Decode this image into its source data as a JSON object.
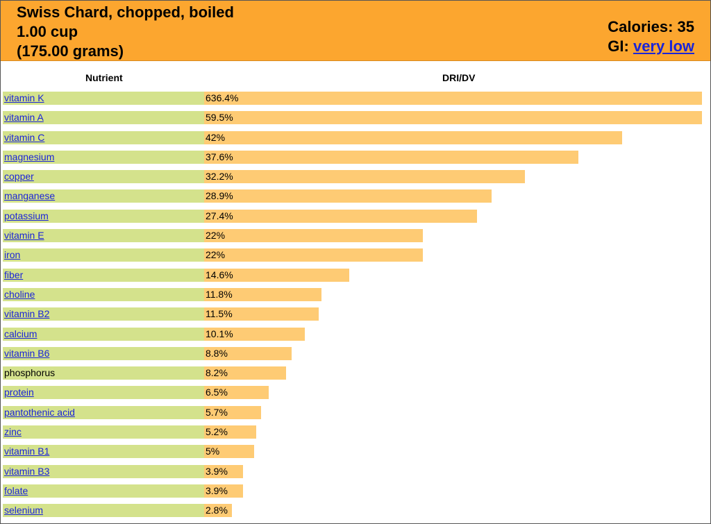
{
  "header": {
    "food_name": "Swiss Chard, chopped, boiled",
    "serving": "1.00 cup",
    "grams": "(175.00 grams)",
    "calories": "Calories: 35",
    "gi_label": "GI: ",
    "gi_value": "very low"
  },
  "colors": {
    "header_bg": "#fca62f",
    "name_bg": "#d4e28c",
    "bar": "#fecb74",
    "link": "#1a24d8"
  },
  "chart_data": {
    "type": "bar",
    "orientation": "horizontal",
    "title": "",
    "xlabel": "DRI/DV",
    "ylabel": "Nutrient",
    "categories": [
      "vitamin K",
      "vitamin A",
      "vitamin C",
      "magnesium",
      "copper",
      "manganese",
      "potassium",
      "vitamin E",
      "iron",
      "fiber",
      "choline",
      "vitamin B2",
      "calcium",
      "vitamin B6",
      "phosphorus",
      "protein",
      "pantothenic acid",
      "zinc",
      "vitamin B1",
      "vitamin B3",
      "folate",
      "selenium"
    ],
    "values": [
      636.4,
      59.5,
      42,
      37.6,
      32.2,
      28.9,
      27.4,
      22,
      22,
      14.6,
      11.8,
      11.5,
      10.1,
      8.8,
      8.2,
      6.5,
      5.7,
      5.2,
      5,
      3.9,
      3.9,
      2.8
    ],
    "value_labels": [
      "636.4%",
      "59.5%",
      "42%",
      "37.6%",
      "32.2%",
      "28.9%",
      "27.4%",
      "22%",
      "22%",
      "14.6%",
      "11.8%",
      "11.5%",
      "10.1%",
      "8.8%",
      "8.2%",
      "6.5%",
      "5.7%",
      "5.2%",
      "5%",
      "3.9%",
      "3.9%",
      "2.8%"
    ],
    "linked": [
      true,
      true,
      true,
      true,
      true,
      true,
      true,
      true,
      true,
      true,
      true,
      true,
      true,
      true,
      false,
      true,
      true,
      true,
      true,
      true,
      true,
      true
    ],
    "xlim": [
      0,
      50
    ],
    "grid": false,
    "legend": "none"
  }
}
